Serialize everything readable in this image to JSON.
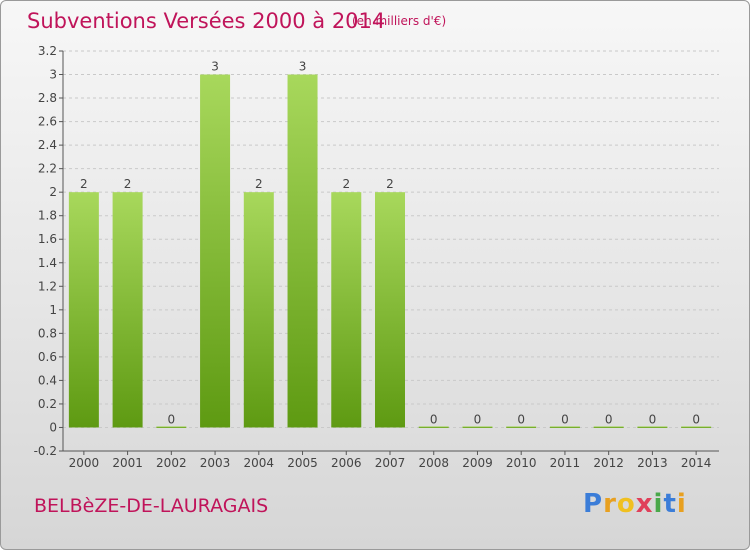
{
  "title": "Subventions Versées 2000 à 2014",
  "subtitle": "(en milliers d'€)",
  "commune": "BELBèZE-DE-LAURAGAIS",
  "logo": {
    "letters": [
      "P",
      "r",
      "o",
      "x",
      "i",
      "t",
      "i"
    ],
    "colors": [
      "#3b7dd8",
      "#e8a020",
      "#f0c020",
      "#e0405a",
      "#4aa84a",
      "#3b7dd8",
      "#e8a020"
    ]
  },
  "colors": {
    "accent": "#c0145a",
    "bar_light": "#a8d85c",
    "bar_dark": "#5e9a12",
    "grid": "#c9c9c9"
  },
  "chart_data": {
    "type": "bar",
    "categories": [
      "2000",
      "2001",
      "2002",
      "2003",
      "2004",
      "2005",
      "2006",
      "2007",
      "2008",
      "2009",
      "2010",
      "2011",
      "2012",
      "2013",
      "2014"
    ],
    "values": [
      2,
      2,
      0,
      3,
      2,
      3,
      2,
      2,
      0,
      0,
      0,
      0,
      0,
      0,
      0
    ],
    "yticks": [
      "-0.2",
      "0",
      "0.2",
      "0.4",
      "0.6",
      "0.8",
      "1",
      "1.2",
      "1.4",
      "1.6",
      "1.8",
      "2",
      "2.2",
      "2.4",
      "2.6",
      "2.8",
      "3",
      "3.2"
    ],
    "ylim": [
      -0.2,
      3.2
    ],
    "grid": "horizontal dashed",
    "data_labels": true
  }
}
